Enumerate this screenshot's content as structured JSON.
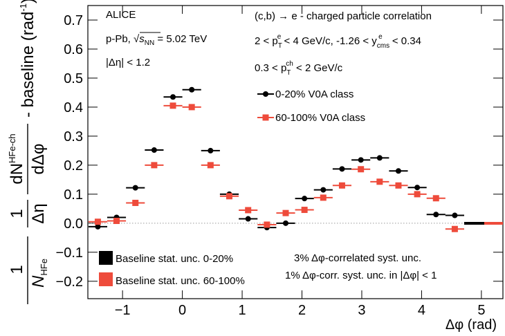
{
  "chart_data": {
    "type": "scatter",
    "x": [
      -1.413,
      -1.1,
      -0.785,
      -0.471,
      -0.157,
      0.157,
      0.471,
      0.785,
      1.1,
      1.414,
      1.728,
      2.042,
      2.356,
      2.67,
      2.985,
      3.299,
      3.613,
      3.927,
      4.241,
      4.555
    ],
    "xerr": 0.157,
    "series": [
      {
        "name": "0-20% V0A class",
        "color": "#000000",
        "marker": "circle",
        "values": [
          -0.012,
          0.02,
          0.122,
          0.252,
          0.435,
          0.46,
          0.25,
          0.1,
          0.015,
          -0.015,
          0.0,
          0.085,
          0.115,
          0.187,
          0.218,
          0.225,
          0.18,
          0.123,
          0.03,
          0.027
        ]
      },
      {
        "name": "60-100% V0A class",
        "color": "#ee4b3b",
        "marker": "square",
        "values": [
          0.005,
          0.008,
          0.07,
          0.2,
          0.405,
          0.4,
          0.2,
          0.093,
          0.045,
          -0.005,
          0.035,
          0.046,
          0.088,
          0.13,
          0.186,
          0.143,
          0.13,
          0.1,
          0.086,
          -0.02
        ]
      }
    ],
    "xlim": [
      -1.58,
      5.36
    ],
    "ylim": [
      -0.26,
      0.75
    ],
    "xticks": [
      {
        "value": -1,
        "label": "−1"
      },
      0,
      1,
      2,
      3,
      4,
      5
    ],
    "yticks": [
      {
        "value": -0.2,
        "label": "−0.2"
      },
      {
        "value": -0.1,
        "label": "−0.1"
      },
      {
        "value": 0,
        "label": "0.0"
      },
      0.1,
      0.2,
      0.3,
      0.4,
      0.5,
      0.6,
      0.7
    ],
    "x_label": "Δφ (rad)",
    "y_label": {
      "f1_num": "1",
      "f1_den": "N",
      "f1_den_sub": "HFe",
      "f2_num": "1",
      "f2_den": "Δη",
      "f3_num": "dN",
      "f3_num_sup": "HFe-ch",
      "f3_den": "dΔφ",
      "tail": "- baseline (rad",
      "tail_sup": "-1",
      "tail_end": ")"
    },
    "annotations": {
      "experiment": "ALICE",
      "system": [
        "p-Pb, √",
        "s",
        "NN",
        " = 5.02 TeV"
      ],
      "deta": "|Δη| < 1.2",
      "process": "(c,b) → e - charged particle correlation",
      "electron_cuts": [
        "2 < p",
        "T",
        "e",
        " < 4 GeV/c, -1.26 < y",
        "cms",
        "e",
        " < 0.34"
      ],
      "hadron_cuts": [
        "0.3 < p",
        "T",
        "ch",
        " < 2 GeV/c"
      ],
      "baseline_1": "Baseline stat. unc. 0-20%",
      "baseline_2": "Baseline stat. unc. 60-100%",
      "syst_1": "3% Δφ-correlated syst. unc.",
      "syst_2": "1% Δφ-corr. syst. unc. in |Δφ| < 1"
    }
  }
}
